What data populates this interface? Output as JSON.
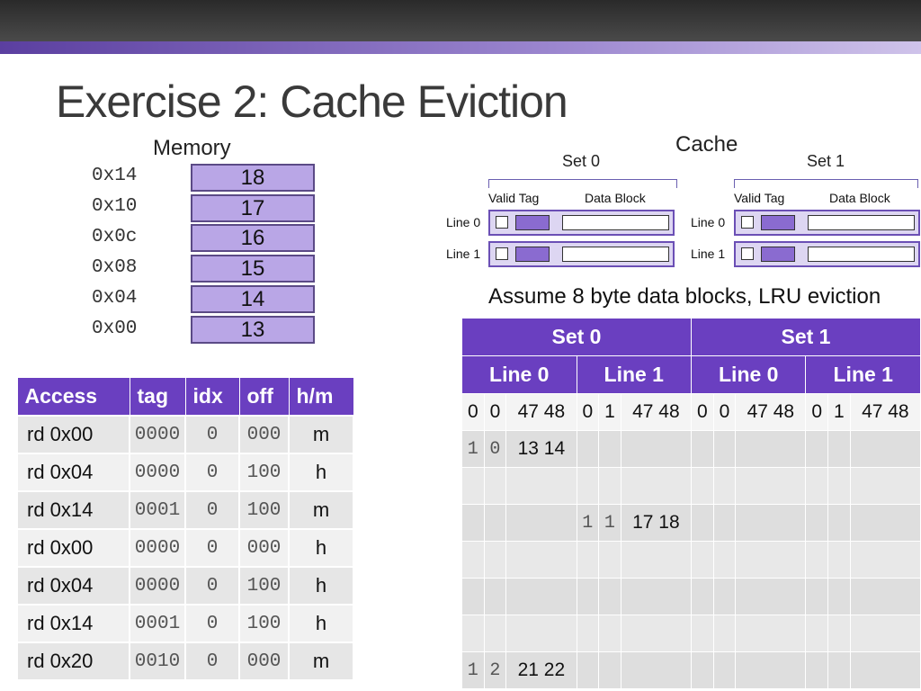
{
  "title": "Exercise 2: Cache Eviction",
  "memory": {
    "label": "Memory",
    "rows": [
      {
        "addr": "0x14",
        "value": "18"
      },
      {
        "addr": "0x10",
        "value": "17"
      },
      {
        "addr": "0x0c",
        "value": "16"
      },
      {
        "addr": "0x08",
        "value": "15"
      },
      {
        "addr": "0x04",
        "value": "14"
      },
      {
        "addr": "0x00",
        "value": "13"
      }
    ]
  },
  "cache": {
    "label": "Cache",
    "set0": "Set 0",
    "set1": "Set 1",
    "valid_tag": "Valid Tag",
    "data_block": "Data Block",
    "line0": "Line 0",
    "line1": "Line 1"
  },
  "assumption": "Assume 8 byte data blocks, LRU eviction",
  "access_table": {
    "headers": [
      "Access",
      "tag",
      "idx",
      "off",
      "h/m"
    ],
    "rows": [
      [
        "rd 0x00",
        "0000",
        "0",
        "000",
        "m"
      ],
      [
        "rd 0x04",
        "0000",
        "0",
        "100",
        "h"
      ],
      [
        "rd 0x14",
        "0001",
        "0",
        "100",
        "m"
      ],
      [
        "rd 0x00",
        "0000",
        "0",
        "000",
        "h"
      ],
      [
        "rd 0x04",
        "0000",
        "0",
        "100",
        "h"
      ],
      [
        "rd 0x14",
        "0001",
        "0",
        "100",
        "h"
      ],
      [
        "rd 0x20",
        "0010",
        "0",
        "000",
        "m"
      ]
    ]
  },
  "cache_table": {
    "set_headers": [
      "Set 0",
      "Set 1"
    ],
    "line_headers": [
      "Line 0",
      "Line 1",
      "Line 0",
      "Line 1"
    ],
    "initial": [
      [
        "0",
        "0",
        "47 48"
      ],
      [
        "0",
        "1",
        "47 48"
      ],
      [
        "0",
        "0",
        "47 48"
      ],
      [
        "0",
        "1",
        "47 48"
      ]
    ],
    "updates": [
      {
        "v": "1",
        "t": "0",
        "d": "13  14"
      },
      {
        "v": "",
        "t": "",
        "d": ""
      },
      {
        "v": "1",
        "t": "1",
        "d": "17  18"
      },
      {
        "v": "",
        "t": "",
        "d": ""
      },
      {
        "v": "",
        "t": "",
        "d": ""
      },
      {
        "v": "",
        "t": "",
        "d": ""
      },
      {
        "v": "1",
        "t": "2",
        "d": "21  22"
      }
    ]
  }
}
